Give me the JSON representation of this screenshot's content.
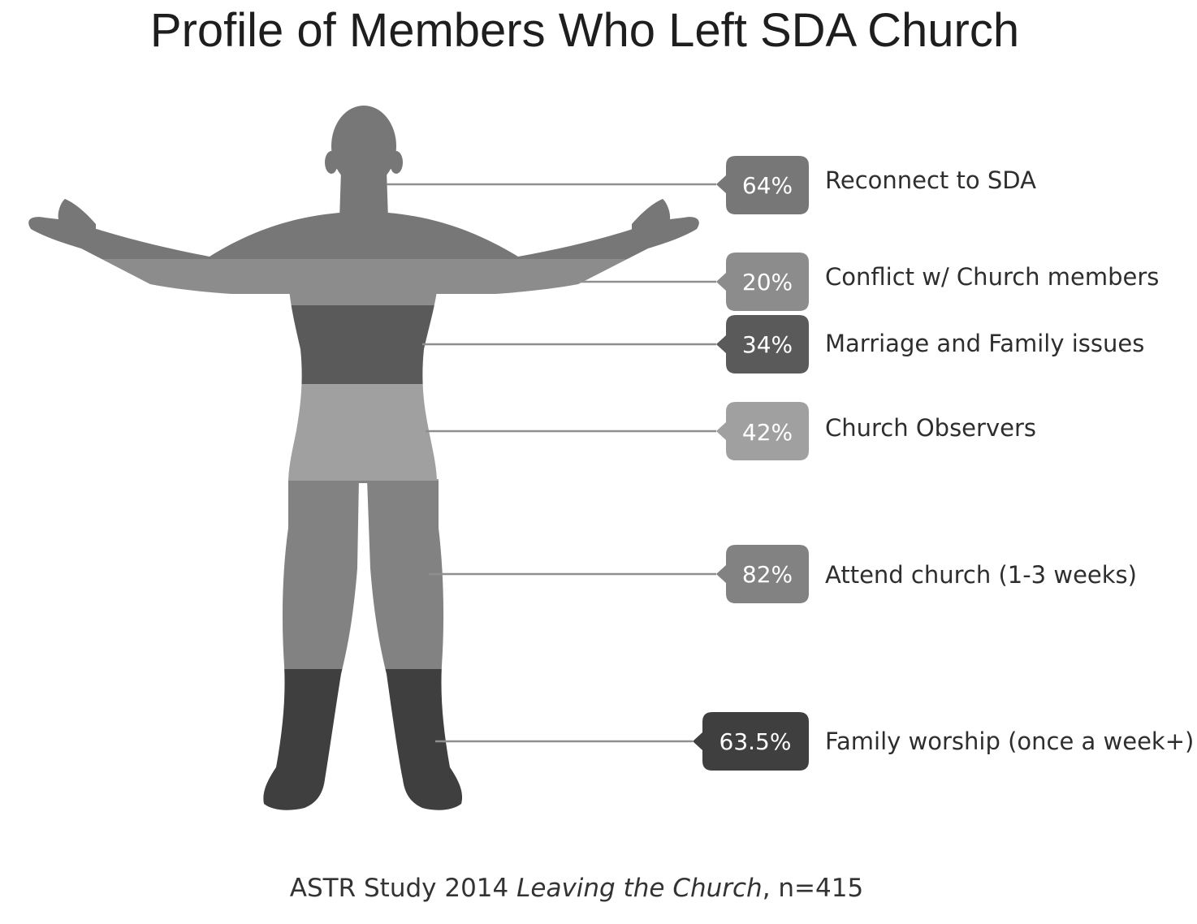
{
  "title": "Profile of Members Who Left SDA Church",
  "callouts": [
    {
      "value": "64%",
      "label": "Reconnect to SDA",
      "color": "#777777"
    },
    {
      "value": "20%",
      "label": "Conflict w/ Church members",
      "color": "#8c8c8c"
    },
    {
      "value": "34%",
      "label": "Marriage and Family issues",
      "color": "#5a5a5a"
    },
    {
      "value": "42%",
      "label": "Church Observers",
      "color": "#a0a0a0"
    },
    {
      "value": "82%",
      "label": "Attend church (1-3 weeks)",
      "color": "#828282"
    },
    {
      "value": "63.5%",
      "label": "Family worship (once a week+)",
      "color": "#3f3f3f"
    }
  ],
  "source": {
    "prefix": "ASTR Study 2014",
    "italic": "Leaving the Church",
    "suffix": ", n=415"
  }
}
